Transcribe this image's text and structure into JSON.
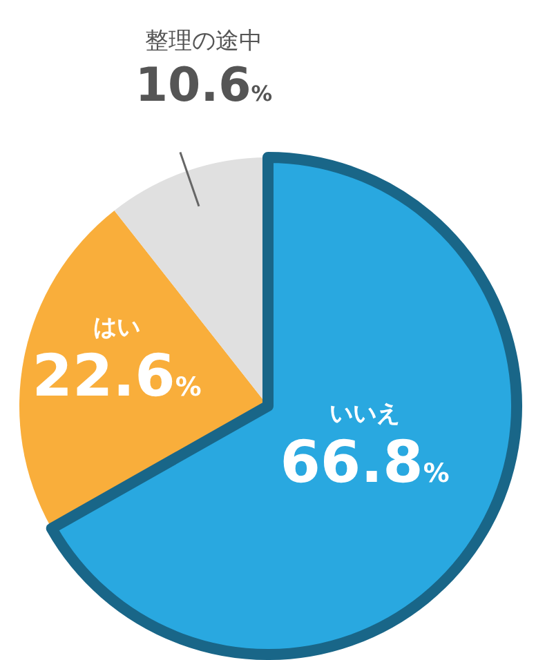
{
  "chart_data": {
    "type": "pie",
    "categories": [
      "いいえ",
      "はい",
      "整理の途中"
    ],
    "values": [
      66.8,
      22.6,
      10.6
    ],
    "colors": [
      "#29a8e0",
      "#f9ae3b",
      "#e0e0e0"
    ],
    "value_labels": [
      "66.8%",
      "22.6%",
      "10.6%"
    ]
  }
}
